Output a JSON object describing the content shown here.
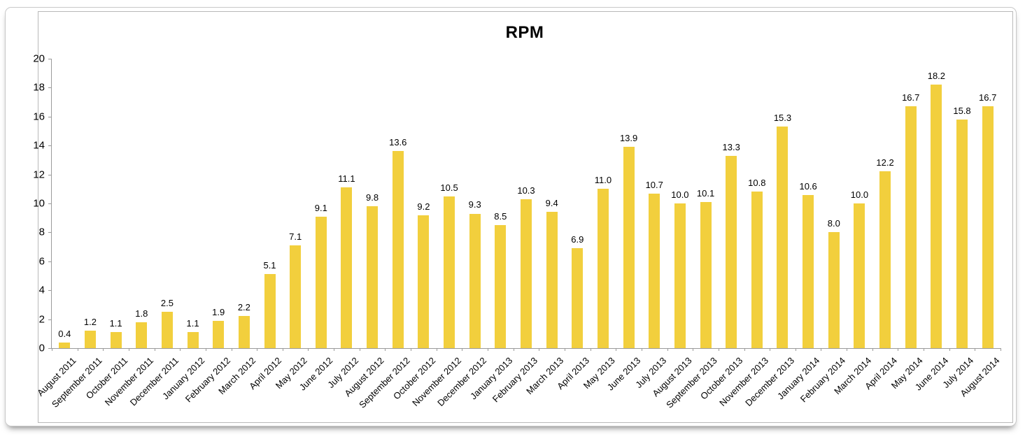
{
  "chart_data": {
    "type": "bar",
    "title": "RPM",
    "xlabel": "",
    "ylabel": "",
    "ylim": [
      0,
      20
    ],
    "ytick_step": 2,
    "grid": false,
    "legend_position": "none",
    "value_labels_shown": true,
    "bar_color": "#F2CF3D",
    "axis_color": "#9a9a9a",
    "label_color": "#000000",
    "categories": [
      "August 2011",
      "September 2011",
      "October 2011",
      "November 2011",
      "December 2011",
      "January 2012",
      "February 2012",
      "March 2012",
      "April 2012",
      "May 2012",
      "June 2012",
      "July 2012",
      "August 2012",
      "September 2012",
      "October 2012",
      "November 2012",
      "December 2012",
      "January 2013",
      "February 2013",
      "March 2013",
      "April 2013",
      "May 2013",
      "June 2013",
      "July 2013",
      "August 2013",
      "September 2013",
      "October 2013",
      "November 2013",
      "December 2013",
      "January 2014",
      "February 2014",
      "March 2014",
      "April 2014",
      "May 2014",
      "June 2014",
      "July 2014",
      "August 2014"
    ],
    "values": [
      0.4,
      1.2,
      1.1,
      1.8,
      2.5,
      1.1,
      1.9,
      2.2,
      5.1,
      7.1,
      9.1,
      11.1,
      9.8,
      13.6,
      9.2,
      10.5,
      9.3,
      8.5,
      10.3,
      9.4,
      6.9,
      11.0,
      13.9,
      10.7,
      10.0,
      10.1,
      13.3,
      10.8,
      15.3,
      10.6,
      8.0,
      10.0,
      12.2,
      16.7,
      18.2,
      15.8,
      16.7
    ]
  }
}
